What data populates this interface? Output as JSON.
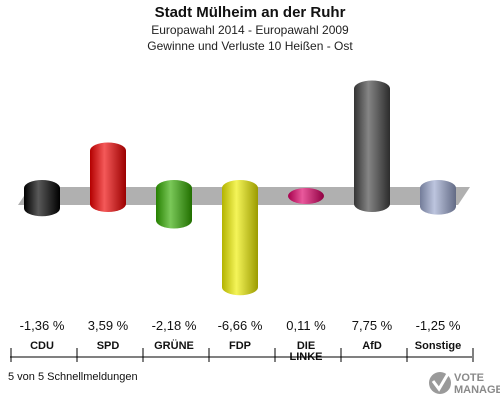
{
  "chart_data": {
    "type": "bar",
    "title": "Stadt Mülheim an der Ruhr",
    "subtitle": "Europawahl 2014 - Europawahl 2009",
    "subtitle2": "Gewinne und Verluste 10 Heißen - Ost",
    "categories": [
      "CDU",
      "SPD",
      "GRÜNE",
      "FDP",
      "DIE LINKE",
      "AfD",
      "Sonstige"
    ],
    "values": [
      -1.36,
      3.59,
      -2.18,
      -6.66,
      0.11,
      7.75,
      -1.25
    ],
    "value_labels": [
      "-1,36 %",
      "3,59 %",
      "-2,18 %",
      "-6,66 %",
      "0,11 %",
      "7,75 %",
      "-1,25 %"
    ],
    "colors": [
      "#000000",
      "#ee0000",
      "#33aa00",
      "#eeee00",
      "#dd0066",
      "#444444",
      "#99a5cc"
    ],
    "ylim": [
      -7,
      8
    ],
    "grid": false,
    "legend": "none"
  },
  "footer": {
    "note": "5 von 5 Schnellmeldungen",
    "logo_line1": "VOTE",
    "logo_line2": "MANAGER"
  }
}
